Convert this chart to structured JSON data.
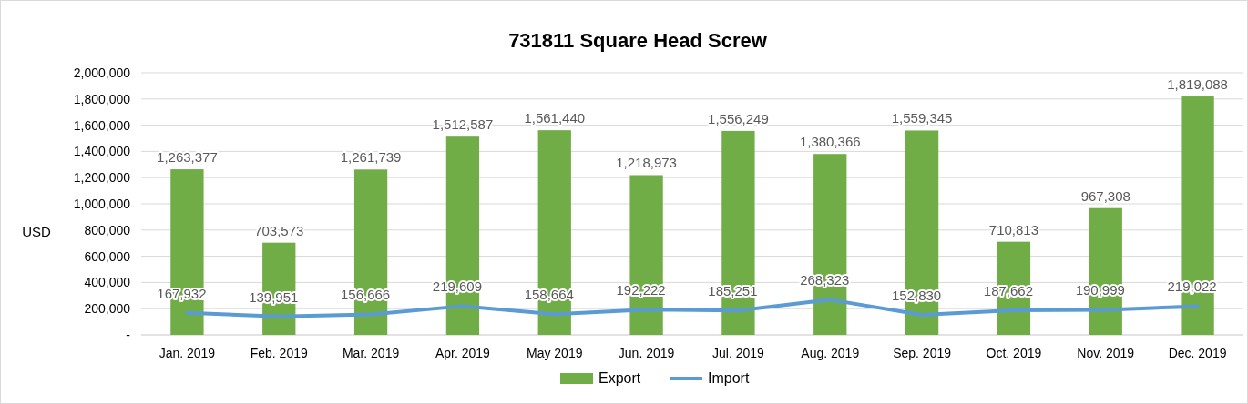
{
  "chart_data": {
    "type": "bar",
    "title": "731811 Square Head Screw",
    "ylabel": "USD",
    "categories": [
      "Jan. 2019",
      "Feb. 2019",
      "Mar. 2019",
      "Apr. 2019",
      "May 2019",
      "Jun. 2019",
      "Jul. 2019",
      "Aug. 2019",
      "Sep. 2019",
      "Oct. 2019",
      "Nov. 2019",
      "Dec. 2019"
    ],
    "series": [
      {
        "name": "Export",
        "color": "#70ad47",
        "values": [
          1263377,
          703573,
          1261739,
          1512587,
          1561440,
          1218973,
          1556249,
          1380366,
          1559345,
          710813,
          967308,
          1819088
        ],
        "value_labels": [
          "1,263,377",
          "703,573",
          "1,261,739",
          "1,512,587",
          "1,561,440",
          "1,218,973",
          "1,556,249",
          "1,380,366",
          "1,559,345",
          "710,813",
          "967,308",
          "1,819,088"
        ]
      },
      {
        "name": "Import",
        "type": "line",
        "color": "#5b9bd5",
        "values": [
          167932,
          139951,
          156666,
          219609,
          158664,
          192222,
          185251,
          268323,
          152830,
          187662,
          190999,
          219022
        ],
        "value_labels": [
          "167,932",
          "139,951",
          "156,666",
          "219,609",
          "158,664",
          "192,222",
          "185,251",
          "268,323",
          "152,830",
          "187,662",
          "190,999",
          "219,022"
        ]
      }
    ],
    "ylim": [
      0,
      2000000
    ],
    "yticks": [
      {
        "value": 0,
        "label": "-"
      },
      {
        "value": 200000,
        "label": "200,000"
      },
      {
        "value": 400000,
        "label": "400,000"
      },
      {
        "value": 600000,
        "label": "600,000"
      },
      {
        "value": 800000,
        "label": "800,000"
      },
      {
        "value": 1000000,
        "label": "1,000,000"
      },
      {
        "value": 1200000,
        "label": "1,200,000"
      },
      {
        "value": 1400000,
        "label": "1,400,000"
      },
      {
        "value": 1600000,
        "label": "1,600,000"
      },
      {
        "value": 1800000,
        "label": "1,800,000"
      },
      {
        "value": 2000000,
        "label": "2,000,000"
      }
    ],
    "grid": "y",
    "legend": "bottom",
    "marker": "none",
    "line_style": "solid"
  }
}
